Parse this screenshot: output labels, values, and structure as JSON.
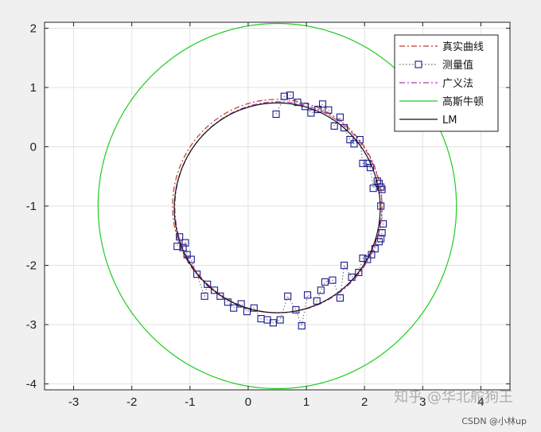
{
  "chart_data": {
    "type": "scatter",
    "title": "",
    "xlabel": "",
    "ylabel": "",
    "xlim": [
      -3.5,
      4.5
    ],
    "ylim": [
      -4.1,
      2.1
    ],
    "xticks": [
      -3,
      -2,
      -1,
      0,
      1,
      2,
      3,
      4
    ],
    "yticks": [
      -4,
      -3,
      -2,
      -1,
      0,
      1,
      2
    ],
    "grid": true,
    "legend_position": "top-right",
    "series": [
      {
        "name": "真实曲线",
        "kind": "circle",
        "center": [
          0.5,
          -1.0
        ],
        "radius": 1.8,
        "color": "#c0392b",
        "linestyle": "dashdot"
      },
      {
        "name": "测量值",
        "kind": "markers",
        "color": "#1a1a8c",
        "linestyle": "dotted",
        "marker": "square",
        "points": [
          [
            0.48,
            0.55
          ],
          [
            0.62,
            0.85
          ],
          [
            0.72,
            0.87
          ],
          [
            0.85,
            0.75
          ],
          [
            0.98,
            0.68
          ],
          [
            1.08,
            0.57
          ],
          [
            1.2,
            0.63
          ],
          [
            1.28,
            0.72
          ],
          [
            1.38,
            0.62
          ],
          [
            1.48,
            0.35
          ],
          [
            1.58,
            0.5
          ],
          [
            1.65,
            0.32
          ],
          [
            1.75,
            0.12
          ],
          [
            1.82,
            0.05
          ],
          [
            1.92,
            0.12
          ],
          [
            1.97,
            -0.28
          ],
          [
            2.05,
            -0.28
          ],
          [
            2.1,
            -0.35
          ],
          [
            2.15,
            -0.7
          ],
          [
            2.22,
            -0.58
          ],
          [
            2.25,
            -0.62
          ],
          [
            2.28,
            -0.68
          ],
          [
            2.3,
            -0.72
          ],
          [
            2.28,
            -1.0
          ],
          [
            2.32,
            -1.3
          ],
          [
            2.3,
            -1.45
          ],
          [
            2.28,
            -1.55
          ],
          [
            2.25,
            -1.6
          ],
          [
            2.18,
            -1.72
          ],
          [
            2.12,
            -1.82
          ],
          [
            2.05,
            -1.9
          ],
          [
            1.97,
            -1.88
          ],
          [
            1.9,
            -2.12
          ],
          [
            1.78,
            -2.2
          ],
          [
            1.65,
            -2.0
          ],
          [
            1.58,
            -2.55
          ],
          [
            1.45,
            -2.25
          ],
          [
            1.32,
            -2.28
          ],
          [
            1.25,
            -2.42
          ],
          [
            1.18,
            -2.6
          ],
          [
            1.02,
            -2.5
          ],
          [
            0.92,
            -3.02
          ],
          [
            0.82,
            -2.75
          ],
          [
            0.68,
            -2.52
          ],
          [
            0.55,
            -2.92
          ],
          [
            0.43,
            -2.97
          ],
          [
            0.33,
            -2.92
          ],
          [
            0.22,
            -2.9
          ],
          [
            0.1,
            -2.72
          ],
          [
            -0.02,
            -2.78
          ],
          [
            -0.12,
            -2.65
          ],
          [
            -0.25,
            -2.72
          ],
          [
            -0.35,
            -2.62
          ],
          [
            -0.48,
            -2.52
          ],
          [
            -0.58,
            -2.42
          ],
          [
            -0.7,
            -2.32
          ],
          [
            -0.75,
            -2.52
          ],
          [
            -0.88,
            -2.15
          ],
          [
            -0.98,
            -1.9
          ],
          [
            -1.05,
            -1.82
          ],
          [
            -1.08,
            -1.62
          ],
          [
            -1.12,
            -1.7
          ],
          [
            -1.18,
            -1.52
          ],
          [
            -1.22,
            -1.68
          ]
        ]
      },
      {
        "name": "广义法",
        "kind": "circle",
        "center": [
          0.52,
          -1.02
        ],
        "radius": 1.78,
        "color": "#b03cb0",
        "linestyle": "dashdot"
      },
      {
        "name": "高斯牛顿",
        "kind": "circle",
        "center": [
          0.5,
          -1.0
        ],
        "radius": 3.08,
        "color": "#22cc22",
        "linestyle": "solid"
      },
      {
        "name": "LM",
        "kind": "circle",
        "center": [
          0.5,
          -1.03
        ],
        "radius": 1.77,
        "color": "#111111",
        "linestyle": "solid"
      }
    ]
  },
  "watermarks": {
    "zhihu": "知乎 @华北舵狗王",
    "csdn": "CSDN @小林up"
  }
}
